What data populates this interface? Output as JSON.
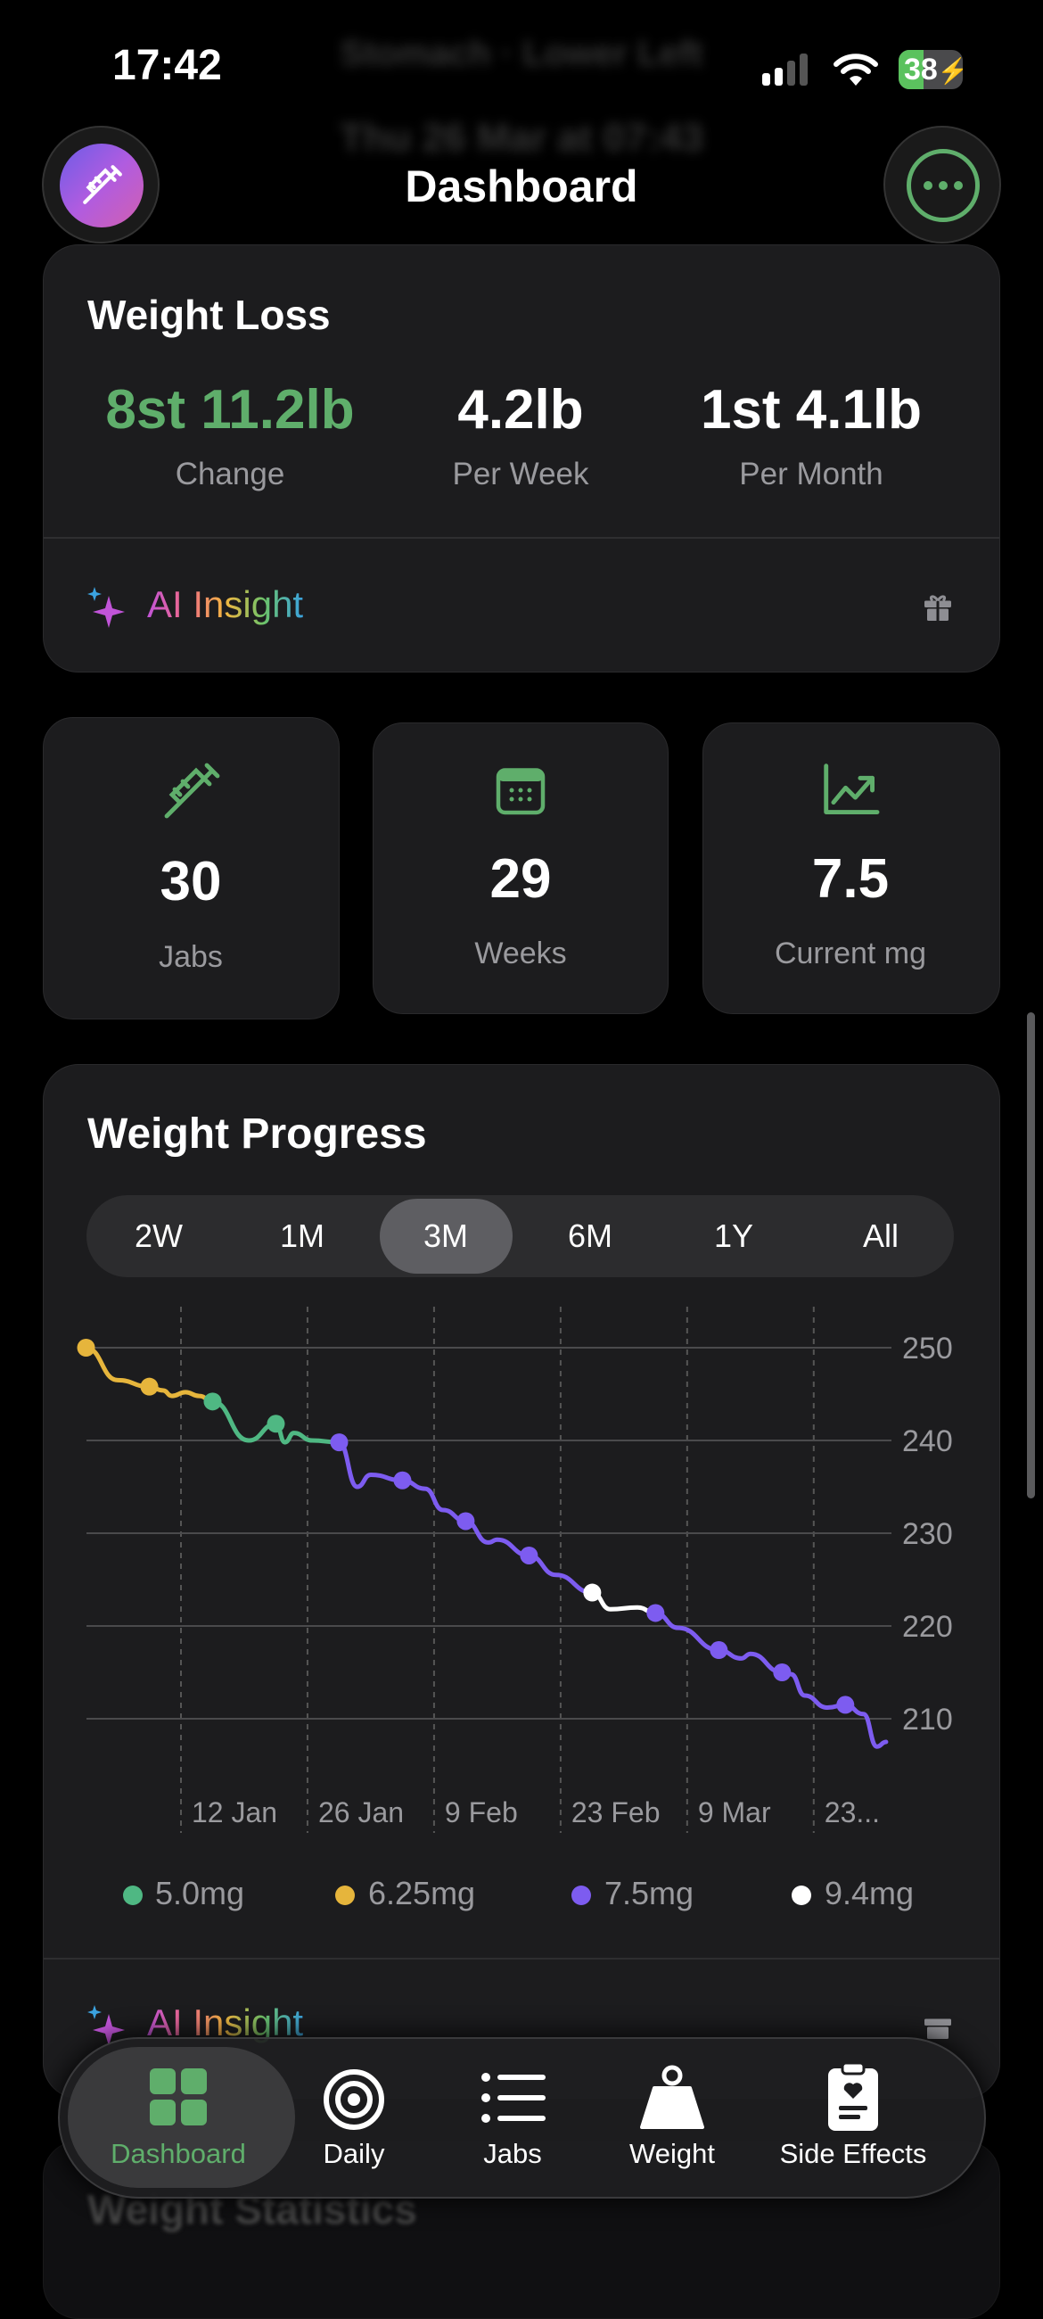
{
  "status_bar": {
    "time": "17:42",
    "battery": "38"
  },
  "background_text": {
    "site": "Stomach · Lower Left",
    "date": "Thu 26 Mar at 07:43"
  },
  "nav": {
    "title": "Dashboard",
    "left_icon": "syringe-icon",
    "right_icon": "ellipsis-icon"
  },
  "weight_loss": {
    "title": "Weight Loss",
    "stats": [
      {
        "value": "8st 11.2lb",
        "label": "Change"
      },
      {
        "value": "4.2lb",
        "label": "Per Week"
      },
      {
        "value": "1st 4.1lb",
        "label": "Per Month"
      }
    ],
    "ai_insight": "AI Insight"
  },
  "tiles": [
    {
      "icon": "syringe-icon",
      "value": "30",
      "label": "Jabs"
    },
    {
      "icon": "calendar-icon",
      "value": "29",
      "label": "Weeks"
    },
    {
      "icon": "chart-up-icon",
      "value": "7.5",
      "label": "Current mg"
    }
  ],
  "weight_progress": {
    "title": "Weight Progress",
    "ranges": [
      "2W",
      "1M",
      "3M",
      "6M",
      "1Y",
      "All"
    ],
    "selected_range": "3M",
    "ai_insight": "AI Insight"
  },
  "chart_data": {
    "type": "line",
    "title": "Weight Progress",
    "xlabel": "",
    "ylabel": "",
    "ylim": [
      204,
      252
    ],
    "yticks": [
      250,
      240,
      230,
      220,
      210
    ],
    "xtick_labels": [
      "12 Jan",
      "26 Jan",
      "9 Feb",
      "23 Feb",
      "9 Mar",
      "23..."
    ],
    "xtick_days": [
      0,
      14,
      28,
      42,
      56,
      70
    ],
    "x_unit": "days since 12 Jan",
    "legend": [
      {
        "label": "5.0mg",
        "color": "#4fb883"
      },
      {
        "label": "6.25mg",
        "color": "#e6b53c"
      },
      {
        "label": "7.5mg",
        "color": "#7d5cf0"
      },
      {
        "label": "9.4mg",
        "color": "#ffffff"
      }
    ],
    "segments": [
      {
        "dose": "6.25mg",
        "color": "#e6b53c",
        "points": [
          [
            -10.5,
            250
          ],
          [
            -7,
            246.5
          ],
          [
            -3.5,
            245.8
          ],
          [
            -2,
            245.4
          ],
          [
            -1,
            244.8
          ],
          [
            0.5,
            245.2
          ],
          [
            2,
            244.8
          ],
          [
            3.5,
            244.2
          ]
        ]
      },
      {
        "dose": "5.0mg",
        "color": "#4fb883",
        "points": [
          [
            3.5,
            244.2
          ],
          [
            7.5,
            240
          ],
          [
            10.5,
            241.8
          ],
          [
            11.5,
            239.8
          ],
          [
            12.5,
            240.8
          ],
          [
            14.5,
            240
          ],
          [
            17.5,
            239.8
          ]
        ]
      },
      {
        "dose": "7.5mg",
        "color": "#7d5cf0",
        "points": [
          [
            17.5,
            239.8
          ],
          [
            19.5,
            235
          ],
          [
            21,
            236.3
          ],
          [
            24.5,
            235.7
          ],
          [
            27,
            234.8
          ],
          [
            29,
            232.5
          ],
          [
            31.5,
            231.3
          ],
          [
            34,
            229
          ],
          [
            35,
            229.3
          ],
          [
            38.5,
            227.6
          ],
          [
            41.5,
            225.5
          ],
          [
            45.5,
            223.6
          ]
        ]
      },
      {
        "dose": "9.4mg",
        "color": "#ffffff",
        "points": [
          [
            45.5,
            223.6
          ],
          [
            47.5,
            221.8
          ],
          [
            50.5,
            222
          ],
          [
            52.5,
            221.4
          ]
        ]
      },
      {
        "dose": "7.5mg",
        "color": "#7d5cf0",
        "points": [
          [
            52.5,
            221.4
          ],
          [
            55,
            219.8
          ],
          [
            59.5,
            217.4
          ],
          [
            62,
            216.5
          ],
          [
            63,
            217
          ],
          [
            66.5,
            215
          ],
          [
            67.5,
            214.8
          ],
          [
            69,
            212.5
          ],
          [
            71.5,
            211.2
          ],
          [
            73.5,
            211.5
          ],
          [
            75.5,
            210.5
          ],
          [
            77,
            207
          ],
          [
            78,
            207.5
          ]
        ]
      }
    ],
    "markers": [
      {
        "day": -10.5,
        "weight": 250,
        "color": "#e6b53c"
      },
      {
        "day": -3.5,
        "weight": 245.8,
        "color": "#e6b53c"
      },
      {
        "day": 3.5,
        "weight": 244.2,
        "color": "#4fb883"
      },
      {
        "day": 10.5,
        "weight": 241.8,
        "color": "#4fb883"
      },
      {
        "day": 17.5,
        "weight": 239.8,
        "color": "#7d5cf0"
      },
      {
        "day": 24.5,
        "weight": 235.7,
        "color": "#7d5cf0"
      },
      {
        "day": 31.5,
        "weight": 231.3,
        "color": "#7d5cf0"
      },
      {
        "day": 38.5,
        "weight": 227.6,
        "color": "#7d5cf0"
      },
      {
        "day": 45.5,
        "weight": 223.6,
        "color": "#ffffff"
      },
      {
        "day": 52.5,
        "weight": 221.4,
        "color": "#7d5cf0"
      },
      {
        "day": 59.5,
        "weight": 217.4,
        "color": "#7d5cf0"
      },
      {
        "day": 66.5,
        "weight": 215,
        "color": "#7d5cf0"
      },
      {
        "day": 73.5,
        "weight": 211.5,
        "color": "#7d5cf0"
      }
    ]
  },
  "behind_card": {
    "title": "Weight Statistics"
  },
  "tab_bar": {
    "items": [
      {
        "label": "Dashboard",
        "icon": "grid-icon",
        "selected": true
      },
      {
        "label": "Daily",
        "icon": "target-icon"
      },
      {
        "label": "Jabs",
        "icon": "list-icon"
      },
      {
        "label": "Weight",
        "icon": "scale-weight-icon"
      },
      {
        "label": "Side Effects",
        "icon": "clipboard-heart-icon"
      }
    ]
  },
  "colors": {
    "accent_green": "#5fae6b",
    "card": "#1c1c1e",
    "purple": "#7d5cf0"
  }
}
